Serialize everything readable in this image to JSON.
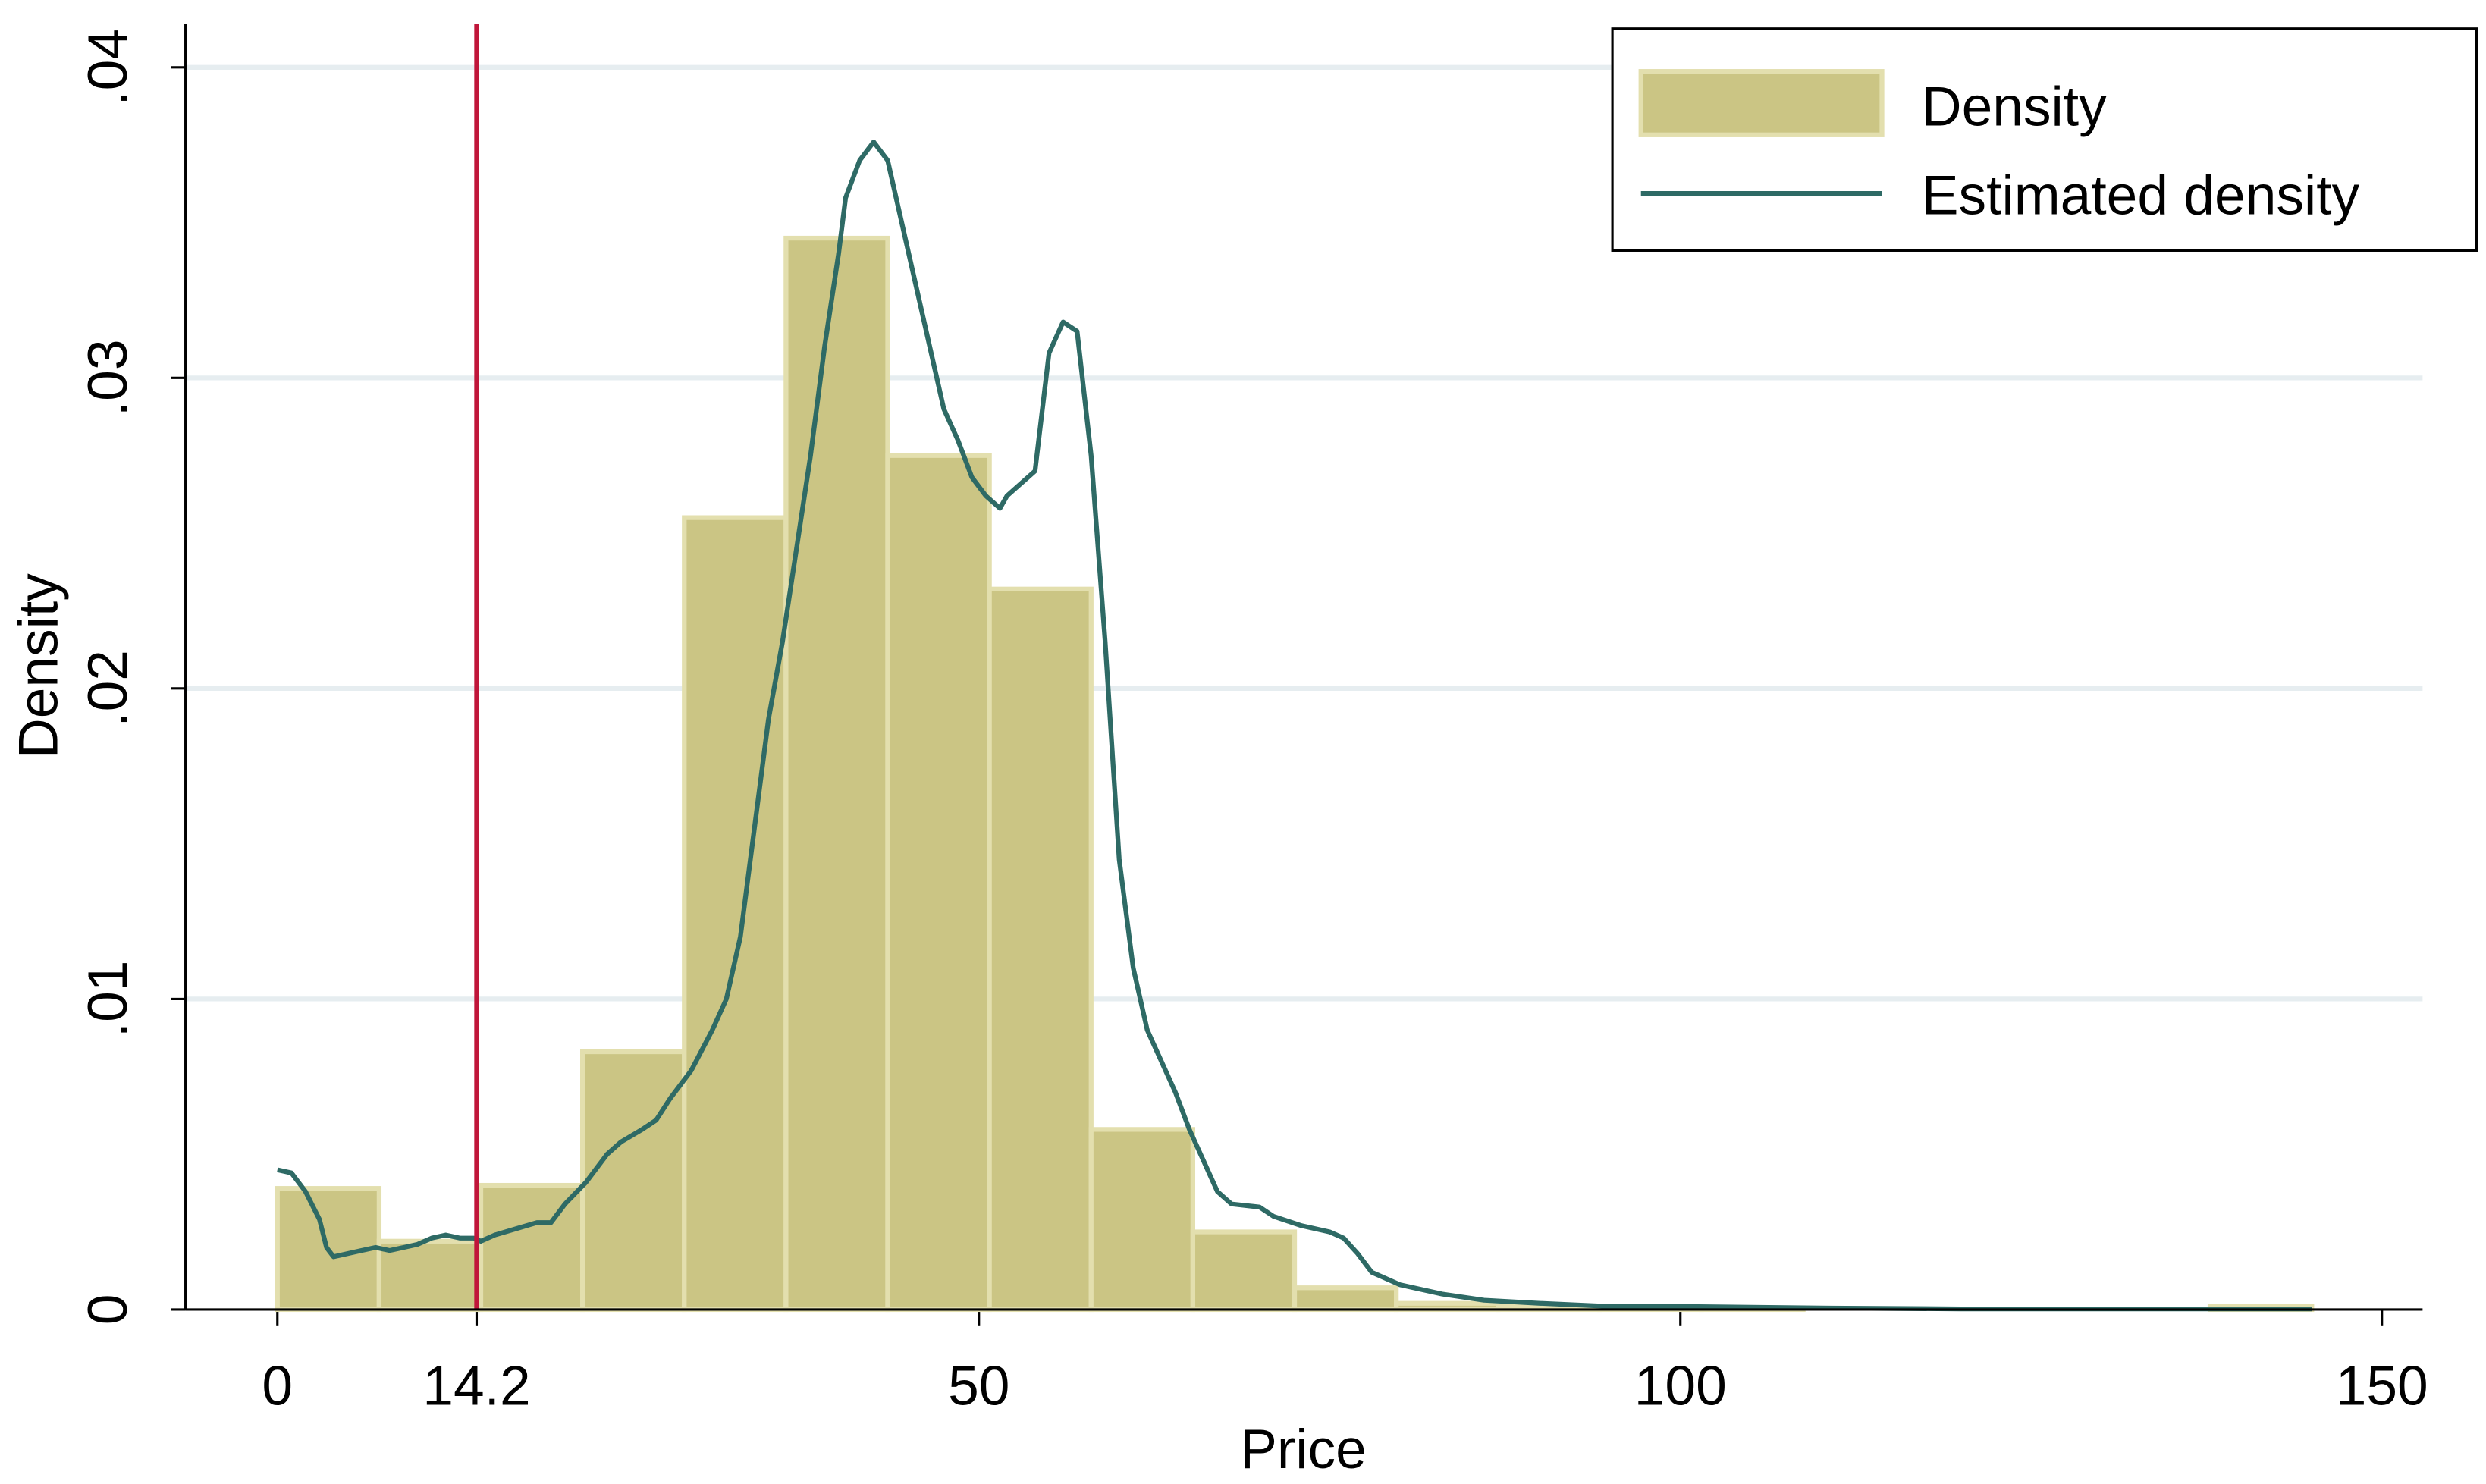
{
  "chart_data": {
    "type": "histogram",
    "x_label": "Price",
    "y_label": "Density",
    "name": "Density",
    "color": "#cbc584",
    "edge_color": "#e3dfae",
    "bins": [
      0,
      7.25,
      14.5,
      21.75,
      29,
      36.25,
      43.5,
      50.75,
      58,
      65.25,
      72.5,
      79.75,
      87,
      94.25,
      101.5,
      108.75,
      116,
      123.25,
      130.5,
      137.75,
      145
    ],
    "counts": [
      0.0039,
      0.0022,
      0.004,
      0.0083,
      0.0255,
      0.0345,
      0.0275,
      0.0232,
      0.0058,
      0.0025,
      0.0007,
      0.0002,
      0.0001,
      5e-05,
      5e-05,
      0,
      0,
      0,
      0,
      0.0001
    ],
    "line": {
      "name": "Estimated density",
      "color": "#2e6a65",
      "x": [
        0,
        1,
        2,
        3,
        3.5,
        4,
        5,
        6,
        7,
        8,
        9,
        10,
        11,
        12,
        13,
        14,
        14.5,
        15.5,
        17,
        18.5,
        19.5,
        20.5,
        22,
        23.5,
        24.5,
        26,
        27,
        28,
        29.5,
        31,
        32,
        33,
        34,
        35,
        36,
        37,
        38,
        39,
        40,
        40.5,
        41.5,
        42.5,
        43.5,
        44.5,
        45.5,
        46.5,
        47.5,
        48.5,
        49.5,
        50.5,
        51.5,
        52,
        53,
        54,
        55,
        56,
        57,
        58,
        59,
        60,
        61,
        62,
        63,
        64,
        65,
        66,
        67,
        68,
        70,
        71,
        73,
        75,
        76,
        77,
        78,
        80,
        83,
        86,
        90,
        95,
        100,
        110,
        120,
        145
      ],
      "values": [
        0.0045,
        0.0044,
        0.0038,
        0.0029,
        0.002,
        0.0017,
        0.0018,
        0.0019,
        0.002,
        0.0019,
        0.002,
        0.0021,
        0.0023,
        0.0024,
        0.0023,
        0.0023,
        0.0022,
        0.0024,
        0.0026,
        0.0028,
        0.0028,
        0.0034,
        0.0041,
        0.005,
        0.0054,
        0.0058,
        0.0061,
        0.0068,
        0.0077,
        0.009,
        0.01,
        0.012,
        0.0155,
        0.019,
        0.0215,
        0.0245,
        0.0275,
        0.031,
        0.034,
        0.0358,
        0.037,
        0.0376,
        0.037,
        0.035,
        0.033,
        0.031,
        0.029,
        0.028,
        0.0268,
        0.0262,
        0.0258,
        0.0262,
        0.0266,
        0.027,
        0.0308,
        0.0318,
        0.0315,
        0.0275,
        0.0215,
        0.0145,
        0.011,
        0.009,
        0.008,
        0.007,
        0.0058,
        0.0048,
        0.0038,
        0.0034,
        0.0033,
        0.003,
        0.0027,
        0.0025,
        0.0023,
        0.0018,
        0.0012,
        0.0008,
        0.0005,
        0.0003,
        0.0002,
        0.0001,
        0.0001,
        5e-05,
        2e-05,
        2e-05
      ]
    },
    "vline": {
      "x": 14.2,
      "color": "#c0163a"
    },
    "xlim": [
      -6.55,
      152.9
    ],
    "ylim": [
      0,
      0.0414
    ],
    "xticks": [
      0,
      14.2,
      50,
      100,
      150
    ],
    "yticks": [
      0,
      {
        "value": 0.01,
        "label": ".01"
      },
      {
        "value": 0.02,
        "label": ".02"
      },
      {
        "value": 0.03,
        "label": ".03"
      },
      {
        "value": 0.04,
        "label": ".04"
      }
    ],
    "grid": true,
    "grid_color": "#e6edf0",
    "legend": "top-right"
  }
}
